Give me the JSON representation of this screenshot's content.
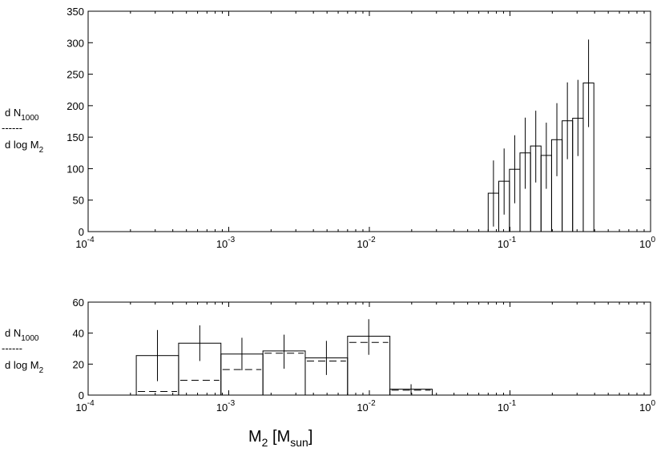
{
  "chart_data": [
    {
      "type": "bar",
      "panel": "top",
      "xscale": "log",
      "xlim": [
        0.0001,
        1
      ],
      "ylim": [
        0,
        350
      ],
      "yticks": [
        0,
        50,
        100,
        150,
        200,
        250,
        300,
        350
      ],
      "ylabel": {
        "numerator": "d N",
        "numerator_sub": "1000",
        "dashes": "------",
        "denominator": "d log M",
        "denominator_sub": "2"
      },
      "xticks": [
        {
          "value": 0.0001,
          "base": "10",
          "exp": "-4"
        },
        {
          "value": 0.001,
          "base": "10",
          "exp": "-3"
        },
        {
          "value": 0.01,
          "base": "10",
          "exp": "-2"
        },
        {
          "value": 0.1,
          "base": "10",
          "exp": "-1"
        },
        {
          "value": 1,
          "base": "10",
          "exp": "0"
        }
      ],
      "bins": [
        {
          "x0": 0.07,
          "x1": 0.0832,
          "value": 61,
          "err_low": 8,
          "err_high": 113
        },
        {
          "x0": 0.0832,
          "x1": 0.0992,
          "value": 80,
          "err_low": 27,
          "err_high": 132
        },
        {
          "x0": 0.0992,
          "x1": 0.1178,
          "value": 99,
          "err_low": 45,
          "err_high": 153
        },
        {
          "x0": 0.1178,
          "x1": 0.14,
          "value": 125,
          "err_low": 68,
          "err_high": 181
        },
        {
          "x0": 0.14,
          "x1": 0.1663,
          "value": 136,
          "err_low": 78,
          "err_high": 192
        },
        {
          "x0": 0.1663,
          "x1": 0.1977,
          "value": 121,
          "err_low": 68,
          "err_high": 173
        },
        {
          "x0": 0.1977,
          "x1": 0.235,
          "value": 146,
          "err_low": 88,
          "err_high": 204
        },
        {
          "x0": 0.235,
          "x1": 0.279,
          "value": 176,
          "err_low": 115,
          "err_high": 237
        },
        {
          "x0": 0.279,
          "x1": 0.332,
          "value": 180,
          "err_low": 120,
          "err_high": 241
        },
        {
          "x0": 0.332,
          "x1": 0.395,
          "value": 236,
          "err_low": 166,
          "err_high": 305
        }
      ]
    },
    {
      "type": "bar",
      "panel": "bottom",
      "xscale": "log",
      "xlim": [
        0.0001,
        1
      ],
      "ylim": [
        0,
        60
      ],
      "yticks": [
        0,
        20,
        40,
        60
      ],
      "ylabel": {
        "numerator": "d N",
        "numerator_sub": "1000",
        "dashes": "------",
        "denominator": "d log M",
        "denominator_sub": "2"
      },
      "xlabel": {
        "main": "M",
        "sub": "2",
        "bracket_open": " [M",
        "unit_sub": "sun",
        "bracket_close": "]"
      },
      "xticks": [
        {
          "value": 0.0001,
          "base": "10",
          "exp": "-4"
        },
        {
          "value": 0.001,
          "base": "10",
          "exp": "-3"
        },
        {
          "value": 0.01,
          "base": "10",
          "exp": "-2"
        },
        {
          "value": 0.1,
          "base": "10",
          "exp": "-1"
        },
        {
          "value": 1,
          "base": "10",
          "exp": "0"
        }
      ],
      "bins": [
        {
          "x0": 0.00022,
          "x1": 0.00044,
          "value": 25.5,
          "err_low": 9,
          "err_high": 42,
          "dashed": 2.3
        },
        {
          "x0": 0.00044,
          "x1": 0.00088,
          "value": 33.5,
          "err_low": 22,
          "err_high": 45,
          "dashed": 9.6
        },
        {
          "x0": 0.00088,
          "x1": 0.00175,
          "value": 26.5,
          "err_low": 16,
          "err_high": 37,
          "dashed": 16.5
        },
        {
          "x0": 0.00175,
          "x1": 0.0035,
          "value": 28.5,
          "err_low": 17,
          "err_high": 39,
          "dashed": 27.0
        },
        {
          "x0": 0.0035,
          "x1": 0.007,
          "value": 24.0,
          "err_low": 13,
          "err_high": 35,
          "dashed": 22.0
        },
        {
          "x0": 0.007,
          "x1": 0.014,
          "value": 38.0,
          "err_low": 26,
          "err_high": 49,
          "dashed": 34.0
        },
        {
          "x0": 0.014,
          "x1": 0.028,
          "value": 3.8,
          "err_low": 0.5,
          "err_high": 7,
          "dashed": 3.2
        }
      ]
    }
  ]
}
